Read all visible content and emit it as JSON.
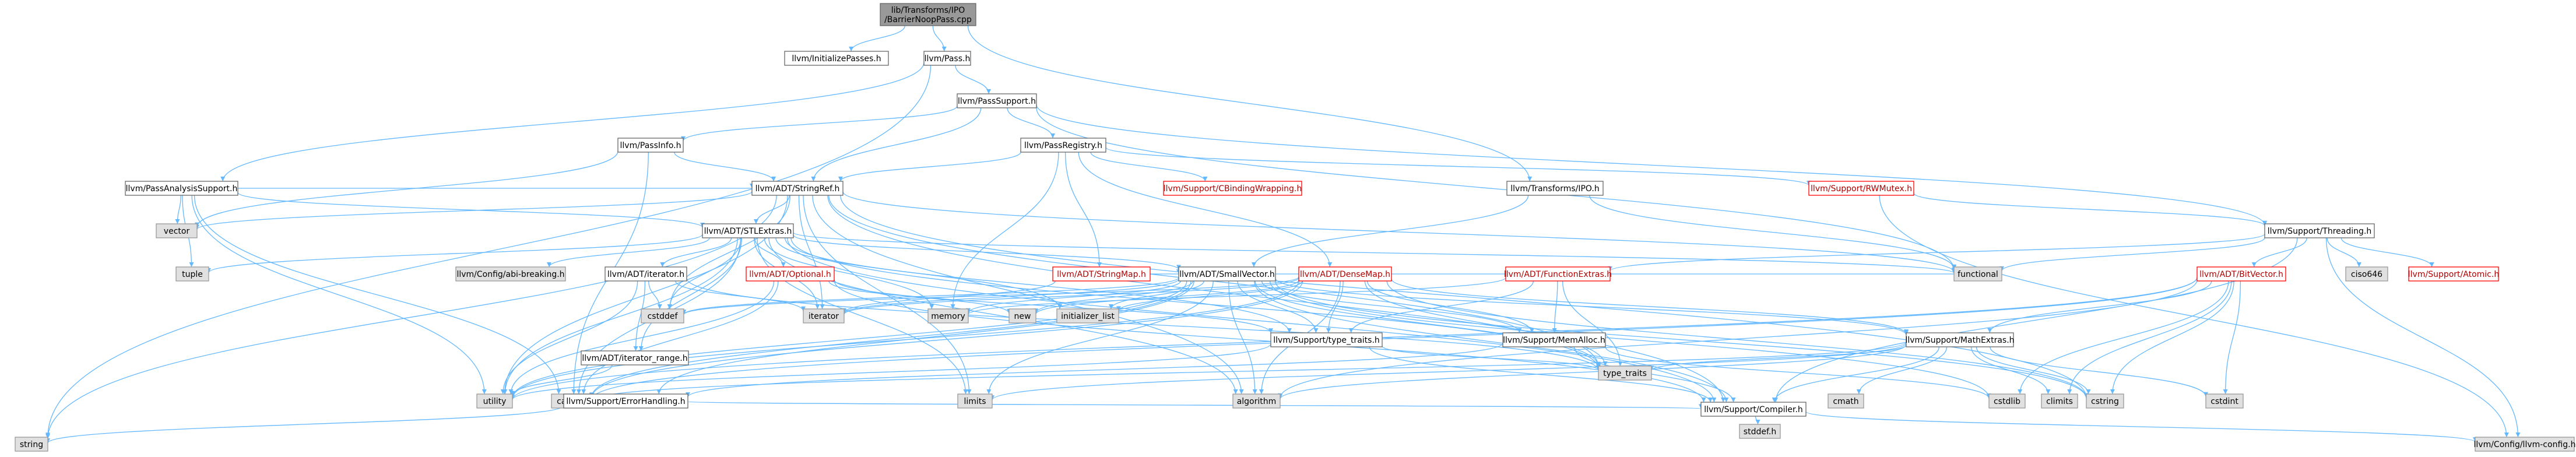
{
  "graph": {
    "title": "lib/Transforms/IPO/BarrierNoopPass.cpp",
    "nodes": [
      {
        "id": "root",
        "label": "lib/Transforms/IPO/BarrierNoopPass.cpp",
        "kind": "root"
      },
      {
        "id": "initpasses",
        "label": "llvm/InitializePasses.h",
        "kind": "normal"
      },
      {
        "id": "pass",
        "label": "llvm/Pass.h",
        "kind": "normal"
      },
      {
        "id": "passsupport",
        "label": "llvm/PassSupport.h",
        "kind": "normal"
      },
      {
        "id": "passinfo",
        "label": "llvm/PassInfo.h",
        "kind": "normal"
      },
      {
        "id": "passregistry",
        "label": "llvm/PassRegistry.h",
        "kind": "normal"
      },
      {
        "id": "passanalysis",
        "label": "llvm/PassAnalysisSupport.h",
        "kind": "normal"
      },
      {
        "id": "stringref",
        "label": "llvm/ADT/StringRef.h",
        "kind": "normal"
      },
      {
        "id": "cbinding",
        "label": "llvm/Support/CBindingWrapping.h",
        "kind": "red"
      },
      {
        "id": "rwmutex",
        "label": "llvm/Support/RWMutex.h",
        "kind": "red"
      },
      {
        "id": "transipo",
        "label": "llvm/Transforms/IPO.h",
        "kind": "normal"
      },
      {
        "id": "vector",
        "label": "vector",
        "kind": "system"
      },
      {
        "id": "stlextras",
        "label": "llvm/ADT/STLExtras.h",
        "kind": "normal"
      },
      {
        "id": "threading",
        "label": "llvm/Support/Threading.h",
        "kind": "normal"
      },
      {
        "id": "tuple",
        "label": "tuple",
        "kind": "system"
      },
      {
        "id": "abibreak",
        "label": "llvm/Config/abi-breaking.h",
        "kind": "system"
      },
      {
        "id": "adtiterator",
        "label": "llvm/ADT/iterator.h",
        "kind": "normal"
      },
      {
        "id": "optional",
        "label": "llvm/ADT/Optional.h",
        "kind": "red"
      },
      {
        "id": "stringmap",
        "label": "llvm/ADT/StringMap.h",
        "kind": "red"
      },
      {
        "id": "smallvector",
        "label": "llvm/ADT/SmallVector.h",
        "kind": "normal"
      },
      {
        "id": "densemap",
        "label": "llvm/ADT/DenseMap.h",
        "kind": "red"
      },
      {
        "id": "funcextras",
        "label": "llvm/ADT/FunctionExtras.h",
        "kind": "red"
      },
      {
        "id": "functional",
        "label": "functional",
        "kind": "system"
      },
      {
        "id": "bitvector",
        "label": "llvm/ADT/BitVector.h",
        "kind": "red"
      },
      {
        "id": "ciso646",
        "label": "ciso646",
        "kind": "system"
      },
      {
        "id": "atomic",
        "label": "llvm/Support/Atomic.h",
        "kind": "red"
      },
      {
        "id": "cstddef",
        "label": "cstddef",
        "kind": "system"
      },
      {
        "id": "iterrange",
        "label": "llvm/ADT/iterator_range.h",
        "kind": "normal"
      },
      {
        "id": "iterator",
        "label": "iterator",
        "kind": "system"
      },
      {
        "id": "memory",
        "label": "memory",
        "kind": "system"
      },
      {
        "id": "new",
        "label": "new",
        "kind": "system"
      },
      {
        "id": "initlist",
        "label": "initializer_list",
        "kind": "system"
      },
      {
        "id": "typetraits_h",
        "label": "llvm/Support/type_traits.h",
        "kind": "normal"
      },
      {
        "id": "memalloc",
        "label": "llvm/Support/MemAlloc.h",
        "kind": "normal"
      },
      {
        "id": "mathextras",
        "label": "llvm/Support/MathExtras.h",
        "kind": "normal"
      },
      {
        "id": "utility",
        "label": "utility",
        "kind": "system"
      },
      {
        "id": "cassert",
        "label": "cassert",
        "kind": "system"
      },
      {
        "id": "errorhandling",
        "label": "llvm/Support/ErrorHandling.h",
        "kind": "normal"
      },
      {
        "id": "limits",
        "label": "limits",
        "kind": "system"
      },
      {
        "id": "algorithm",
        "label": "algorithm",
        "kind": "system"
      },
      {
        "id": "type_traits",
        "label": "type_traits",
        "kind": "system"
      },
      {
        "id": "cmath",
        "label": "cmath",
        "kind": "system"
      },
      {
        "id": "cstdlib",
        "label": "cstdlib",
        "kind": "system"
      },
      {
        "id": "climits",
        "label": "climits",
        "kind": "system"
      },
      {
        "id": "cstring",
        "label": "cstring",
        "kind": "system"
      },
      {
        "id": "cstdint",
        "label": "cstdint",
        "kind": "system"
      },
      {
        "id": "string",
        "label": "string",
        "kind": "system"
      },
      {
        "id": "compiler",
        "label": "llvm/Support/Compiler.h",
        "kind": "normal"
      },
      {
        "id": "stddef",
        "label": "stddef.h",
        "kind": "system"
      },
      {
        "id": "llvmconfig",
        "label": "llvm/Config/llvm-config.h",
        "kind": "system"
      }
    ],
    "edges": [
      [
        "root",
        "initpasses"
      ],
      [
        "root",
        "pass"
      ],
      [
        "root",
        "transipo"
      ],
      [
        "pass",
        "passsupport"
      ],
      [
        "pass",
        "passanalysis"
      ],
      [
        "pass",
        "string"
      ],
      [
        "passsupport",
        "passinfo"
      ],
      [
        "passsupport",
        "passregistry"
      ],
      [
        "passsupport",
        "stringref"
      ],
      [
        "passsupport",
        "threading"
      ],
      [
        "passsupport",
        "functional"
      ],
      [
        "passinfo",
        "stringref"
      ],
      [
        "passinfo",
        "cassert"
      ],
      [
        "passinfo",
        "vector"
      ],
      [
        "passregistry",
        "stringref"
      ],
      [
        "passregistry",
        "cbinding"
      ],
      [
        "passregistry",
        "rwmutex"
      ],
      [
        "passregistry",
        "stringmap"
      ],
      [
        "passregistry",
        "densemap"
      ],
      [
        "passregistry",
        "memory"
      ],
      [
        "passanalysis",
        "stlextras"
      ],
      [
        "passanalysis",
        "stringref"
      ],
      [
        "passanalysis",
        "vector"
      ],
      [
        "passanalysis",
        "tuple"
      ],
      [
        "passanalysis",
        "cassert"
      ],
      [
        "passanalysis",
        "utility"
      ],
      [
        "stringref",
        "stlextras"
      ],
      [
        "stringref",
        "vector"
      ],
      [
        "stringref",
        "string"
      ],
      [
        "stringref",
        "compiler"
      ],
      [
        "stringref",
        "iterator"
      ],
      [
        "stringref",
        "limits"
      ],
      [
        "stringref",
        "algorithm"
      ],
      [
        "stringref",
        "type_traits"
      ],
      [
        "stringref",
        "cstddef"
      ],
      [
        "stringref",
        "cstring"
      ],
      [
        "stringref",
        "utility"
      ],
      [
        "stringref",
        "functional"
      ],
      [
        "rwmutex",
        "threading"
      ],
      [
        "rwmutex",
        "llvmconfig"
      ],
      [
        "transipo",
        "smallvector"
      ],
      [
        "transipo",
        "functional"
      ],
      [
        "stlextras",
        "abibreak"
      ],
      [
        "stlextras",
        "adtiterator"
      ],
      [
        "stlextras",
        "optional"
      ],
      [
        "stlextras",
        "smallvector"
      ],
      [
        "stlextras",
        "iterrange"
      ],
      [
        "stlextras",
        "compiler"
      ],
      [
        "stlextras",
        "algorithm"
      ],
      [
        "stlextras",
        "cassert"
      ],
      [
        "stlextras",
        "cstddef"
      ],
      [
        "stlextras",
        "functional"
      ],
      [
        "stlextras",
        "initlist"
      ],
      [
        "stlextras",
        "iterator"
      ],
      [
        "stlextras",
        "limits"
      ],
      [
        "stlextras",
        "memory"
      ],
      [
        "stlextras",
        "tuple"
      ],
      [
        "stlextras",
        "type_traits"
      ],
      [
        "stlextras",
        "utility"
      ],
      [
        "stlextras",
        "typetraits_h"
      ],
      [
        "threading",
        "funcextras"
      ],
      [
        "threading",
        "bitvector"
      ],
      [
        "threading",
        "compiler"
      ],
      [
        "threading",
        "ciso646"
      ],
      [
        "threading",
        "atomic"
      ],
      [
        "threading",
        "llvmconfig"
      ],
      [
        "threading",
        "functional"
      ],
      [
        "adtiterator",
        "iterrange"
      ],
      [
        "adtiterator",
        "cstddef"
      ],
      [
        "adtiterator",
        "iterator"
      ],
      [
        "adtiterator",
        "type_traits"
      ],
      [
        "adtiterator",
        "utility"
      ],
      [
        "optional",
        "compiler"
      ],
      [
        "optional",
        "typetraits_h"
      ],
      [
        "optional",
        "cassert"
      ],
      [
        "optional",
        "new"
      ],
      [
        "optional",
        "utility"
      ],
      [
        "stringmap",
        "smallvector"
      ],
      [
        "stringmap",
        "iterator"
      ],
      [
        "smallvector",
        "compiler"
      ],
      [
        "smallvector",
        "typetraits_h"
      ],
      [
        "smallvector",
        "memalloc"
      ],
      [
        "smallvector",
        "mathextras"
      ],
      [
        "smallvector",
        "errorhandling"
      ],
      [
        "smallvector",
        "algorithm"
      ],
      [
        "smallvector",
        "cassert"
      ],
      [
        "smallvector",
        "cstddef"
      ],
      [
        "smallvector",
        "cstdlib"
      ],
      [
        "smallvector",
        "cstring"
      ],
      [
        "smallvector",
        "functional"
      ],
      [
        "smallvector",
        "initlist"
      ],
      [
        "smallvector",
        "iterator"
      ],
      [
        "smallvector",
        "limits"
      ],
      [
        "smallvector",
        "memory"
      ],
      [
        "smallvector",
        "new"
      ],
      [
        "smallvector",
        "type_traits"
      ],
      [
        "smallvector",
        "utility"
      ],
      [
        "densemap",
        "mathextras"
      ],
      [
        "densemap",
        "memalloc"
      ],
      [
        "densemap",
        "typetraits_h"
      ],
      [
        "densemap",
        "algorithm"
      ],
      [
        "densemap",
        "cassert"
      ],
      [
        "densemap",
        "cstddef"
      ],
      [
        "densemap",
        "cstring"
      ],
      [
        "densemap",
        "initlist"
      ],
      [
        "densemap",
        "iterator"
      ],
      [
        "densemap",
        "new"
      ],
      [
        "densemap",
        "type_traits"
      ],
      [
        "densemap",
        "utility"
      ],
      [
        "funcextras",
        "memalloc"
      ],
      [
        "funcextras",
        "typetraits_h"
      ],
      [
        "funcextras",
        "memory"
      ],
      [
        "funcextras",
        "type_traits"
      ],
      [
        "bitvector",
        "mathextras"
      ],
      [
        "bitvector",
        "algorithm"
      ],
      [
        "bitvector",
        "cassert"
      ],
      [
        "bitvector",
        "climits"
      ],
      [
        "bitvector",
        "cstdint"
      ],
      [
        "bitvector",
        "cstdlib"
      ],
      [
        "bitvector",
        "cstring"
      ],
      [
        "bitvector",
        "utility"
      ],
      [
        "iterrange",
        "utility"
      ],
      [
        "typetraits_h",
        "compiler"
      ],
      [
        "typetraits_h",
        "type_traits"
      ],
      [
        "typetraits_h",
        "utility"
      ],
      [
        "memalloc",
        "compiler"
      ],
      [
        "memalloc",
        "errorhandling"
      ],
      [
        "memalloc",
        "cstdlib"
      ],
      [
        "mathextras",
        "compiler"
      ],
      [
        "mathextras",
        "algorithm"
      ],
      [
        "mathextras",
        "cassert"
      ],
      [
        "mathextras",
        "climits"
      ],
      [
        "mathextras",
        "cmath"
      ],
      [
        "mathextras",
        "cstdint"
      ],
      [
        "mathextras",
        "cstring"
      ],
      [
        "mathextras",
        "limits"
      ],
      [
        "mathextras",
        "type_traits"
      ],
      [
        "errorhandling",
        "compiler"
      ],
      [
        "errorhandling",
        "string"
      ],
      [
        "compiler",
        "stddef"
      ],
      [
        "compiler",
        "llvmconfig"
      ]
    ]
  }
}
